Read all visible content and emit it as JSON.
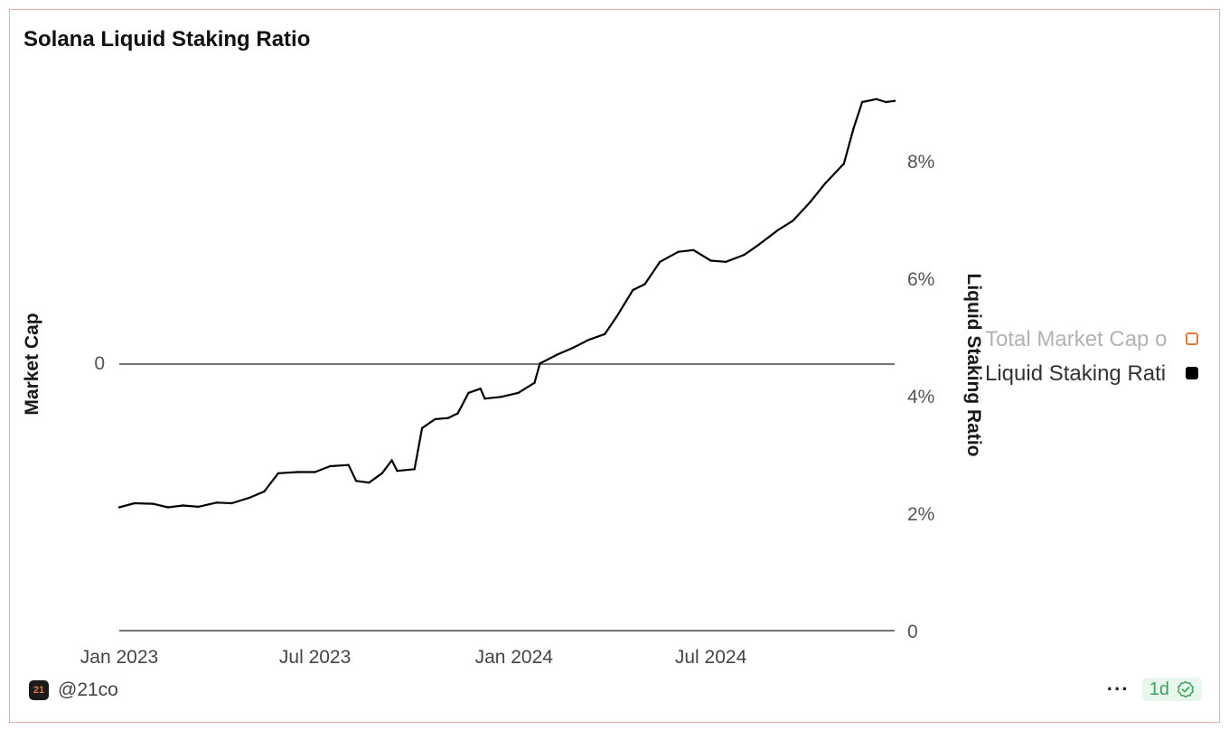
{
  "title": "Solana Liquid Staking Ratio",
  "chart_data": {
    "type": "line",
    "title": "Solana Liquid Staking Ratio",
    "x_ticks": [
      "Jan 2023",
      "Jul 2023",
      "Jan 2024",
      "Jul 2024"
    ],
    "left_axis": {
      "label": "Market Cap",
      "ticks": [
        "0"
      ]
    },
    "right_axis": {
      "label": "Liquid Staking Ratio",
      "ticks": [
        "0",
        "2%",
        "4%",
        "6%",
        "8%"
      ],
      "range": [
        0,
        9.2
      ],
      "unit": "%"
    },
    "x_range": [
      "2023-01-01",
      "2024-12-18"
    ],
    "grid": false,
    "legend_position": "right",
    "series": [
      {
        "name": "Total Market Cap o",
        "axis": "left",
        "color": "#e07a3a",
        "values": []
      },
      {
        "name": "Liquid Staking Rati",
        "axis": "right",
        "color": "#000000",
        "points": [
          [
            "2023-01-01",
            2.1
          ],
          [
            "2023-01-15",
            2.17
          ],
          [
            "2023-02-01",
            2.16
          ],
          [
            "2023-02-15",
            2.1
          ],
          [
            "2023-03-01",
            2.13
          ],
          [
            "2023-03-15",
            2.11
          ],
          [
            "2023-04-01",
            2.18
          ],
          [
            "2023-04-15",
            2.17
          ],
          [
            "2023-05-01",
            2.26
          ],
          [
            "2023-05-15",
            2.37
          ],
          [
            "2023-05-28",
            2.68
          ],
          [
            "2023-06-15",
            2.7
          ],
          [
            "2023-07-01",
            2.7
          ],
          [
            "2023-07-15",
            2.8
          ],
          [
            "2023-08-01",
            2.82
          ],
          [
            "2023-08-08",
            2.55
          ],
          [
            "2023-08-20",
            2.52
          ],
          [
            "2023-09-01",
            2.68
          ],
          [
            "2023-09-10",
            2.9
          ],
          [
            "2023-09-15",
            2.72
          ],
          [
            "2023-10-01",
            2.75
          ],
          [
            "2023-10-08",
            3.45
          ],
          [
            "2023-10-20",
            3.6
          ],
          [
            "2023-11-01",
            3.62
          ],
          [
            "2023-11-10",
            3.7
          ],
          [
            "2023-11-20",
            4.05
          ],
          [
            "2023-12-01",
            4.12
          ],
          [
            "2023-12-05",
            3.95
          ],
          [
            "2023-12-20",
            3.98
          ],
          [
            "2024-01-05",
            4.05
          ],
          [
            "2024-01-20",
            4.22
          ],
          [
            "2024-01-25",
            4.55
          ],
          [
            "2024-02-10",
            4.7
          ],
          [
            "2024-02-25",
            4.82
          ],
          [
            "2024-03-10",
            4.95
          ],
          [
            "2024-03-25",
            5.05
          ],
          [
            "2024-04-05",
            5.35
          ],
          [
            "2024-04-20",
            5.8
          ],
          [
            "2024-05-01",
            5.9
          ],
          [
            "2024-05-15",
            6.28
          ],
          [
            "2024-06-01",
            6.45
          ],
          [
            "2024-06-15",
            6.48
          ],
          [
            "2024-07-01",
            6.3
          ],
          [
            "2024-07-15",
            6.28
          ],
          [
            "2024-08-01",
            6.4
          ],
          [
            "2024-08-15",
            6.58
          ],
          [
            "2024-09-01",
            6.82
          ],
          [
            "2024-09-15",
            6.98
          ],
          [
            "2024-10-01",
            7.3
          ],
          [
            "2024-10-15",
            7.62
          ],
          [
            "2024-11-01",
            7.95
          ],
          [
            "2024-11-10",
            8.55
          ],
          [
            "2024-11-18",
            9.0
          ],
          [
            "2024-12-01",
            9.05
          ],
          [
            "2024-12-10",
            9.0
          ],
          [
            "2024-12-18",
            9.02
          ]
        ]
      }
    ]
  },
  "footer": {
    "handle": "@21co",
    "logo_text": "21",
    "more_label": "···",
    "refresh_label": "1d"
  },
  "colors": {
    "border": "#eab0a2",
    "accent": "#e07a3a",
    "line": "#000000",
    "badge_bg": "#e8f6ec",
    "badge_text": "#3aa35c"
  }
}
